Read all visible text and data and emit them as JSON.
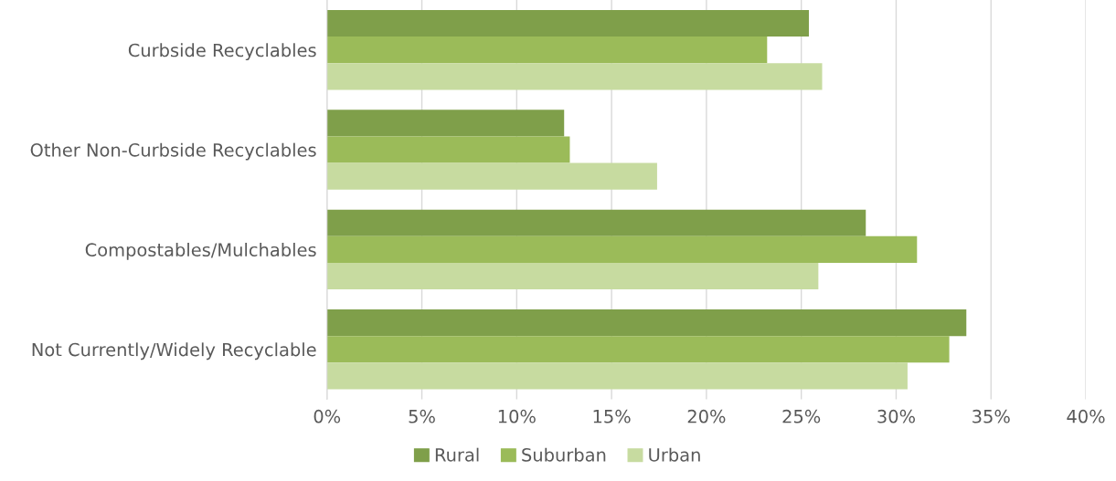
{
  "chart_data": {
    "type": "bar",
    "orientation": "horizontal",
    "categories": [
      "Curbside Recyclables",
      "Other Non-Curbside Recyclables",
      "Compostables/Mulchables",
      "Not Currently/Widely Recyclable"
    ],
    "series": [
      {
        "name": "Rural",
        "color": "#7f9f4a",
        "values": [
          25.4,
          12.5,
          28.4,
          33.7
        ]
      },
      {
        "name": "Suburban",
        "color": "#9bbb59",
        "values": [
          23.2,
          12.8,
          31.1,
          32.8
        ]
      },
      {
        "name": "Urban",
        "color": "#c7dba0",
        "values": [
          26.1,
          17.4,
          25.9,
          30.6
        ]
      }
    ],
    "xlim": [
      0,
      40
    ],
    "xticks": [
      {
        "value": 0,
        "label": "0%"
      },
      {
        "value": 5,
        "label": "5%"
      },
      {
        "value": 10,
        "label": "10%"
      },
      {
        "value": 15,
        "label": "15%"
      },
      {
        "value": 20,
        "label": "20%"
      },
      {
        "value": 25,
        "label": "25%"
      },
      {
        "value": 30,
        "label": "30%"
      },
      {
        "value": 35,
        "label": "35%"
      },
      {
        "value": 40,
        "label": "40%"
      }
    ],
    "grid": "x",
    "legend": "bottom"
  }
}
